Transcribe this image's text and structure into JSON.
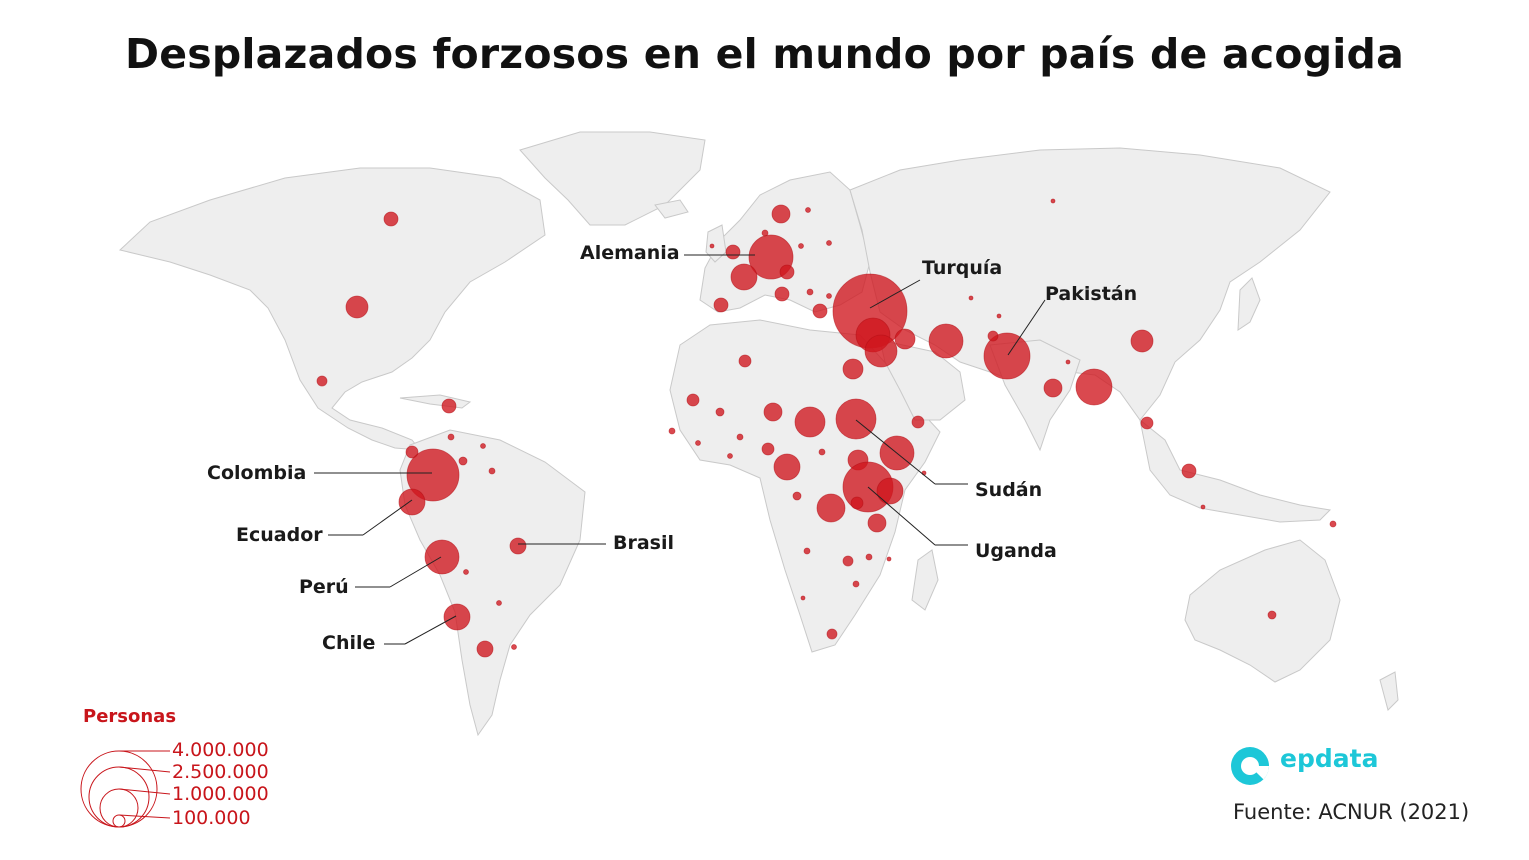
{
  "title": "Desplazados forzosos en el mundo por país de acogida",
  "legend": {
    "title": "Personas",
    "values": [
      "4.000.000",
      "2.500.000",
      "1.000.000",
      "100.000"
    ],
    "color": "#c8151b"
  },
  "labels": {
    "alemania": "Alemania",
    "turquia": "Turquía",
    "pakistan": "Pakistán",
    "sudan": "Sudán",
    "uganda": "Uganda",
    "colombia": "Colombia",
    "ecuador": "Ecuador",
    "peru": "Perú",
    "chile": "Chile",
    "brasil": "Brasil"
  },
  "brand": {
    "name": "epdata",
    "icon": "epdata-logo-icon",
    "color": "#1dc7d8"
  },
  "source": "Fuente: ACNUR (2021)",
  "bubble_color": "#d0161d"
}
